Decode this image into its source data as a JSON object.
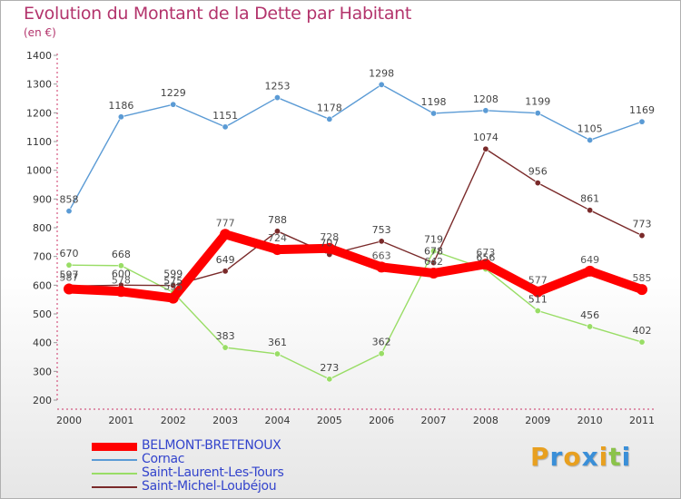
{
  "title": "Evolution du Montant de la Dette par Habitant",
  "subtitle": "(en €)",
  "logo": {
    "letters": [
      "P",
      "r",
      "o",
      "x",
      "i",
      "t",
      "i"
    ],
    "colors": [
      "#e8a020",
      "#3a8fd8",
      "#e8a020",
      "#3a8fd8",
      "#e8a020",
      "#8bc34a",
      "#3a8fd8"
    ]
  },
  "chart_data": {
    "type": "line",
    "categories": [
      "2000",
      "2001",
      "2002",
      "2003",
      "2004",
      "2005",
      "2006",
      "2007",
      "2008",
      "2009",
      "2010",
      "2011"
    ],
    "ylim": [
      200,
      1400
    ],
    "yticks": [
      200,
      300,
      400,
      500,
      600,
      700,
      800,
      900,
      1000,
      1100,
      1200,
      1300,
      1400
    ],
    "grid": false,
    "legend_position": "bottom-left",
    "series": [
      {
        "name": "BELMONT-BRETENOUX",
        "color": "#ff0000",
        "labelColor": "#5a5a5a",
        "thick": true,
        "values": [
          587,
          578,
          555,
          777,
          724,
          728,
          663,
          642,
          673,
          577,
          649,
          585
        ],
        "labels": [
          "587",
          "578",
          "555",
          "777",
          "724",
          "728",
          "663",
          "642",
          "673",
          "577",
          "649",
          "585"
        ]
      },
      {
        "name": "Cornac",
        "color": "#5b9bd5",
        "labelColor": "#444444",
        "values": [
          858,
          1186,
          1229,
          1151,
          1253,
          1178,
          1298,
          1198,
          1208,
          1199,
          1105,
          1169
        ],
        "labels": [
          "858",
          "1186",
          "1229",
          "1151",
          "1253",
          "1178",
          "1298",
          "1198",
          "1208",
          "1199",
          "1105",
          "1169"
        ]
      },
      {
        "name": "Saint-Laurent-Les-Tours",
        "color": "#99dd66",
        "labelColor": "#444444",
        "values": [
          670,
          668,
          575,
          383,
          361,
          273,
          362,
          719,
          656,
          511,
          456,
          402
        ],
        "labels": [
          "670",
          "668",
          "575",
          "383",
          "361",
          "273",
          "362",
          "719",
          "656",
          "511",
          "456",
          "402"
        ]
      },
      {
        "name": "Saint-Michel-Loubéjou",
        "color": "#7a2a2a",
        "labelColor": "#444444",
        "values": [
          597,
          600,
          599,
          649,
          788,
          707,
          753,
          678,
          1074,
          956,
          861,
          773
        ],
        "labels": [
          "597",
          "600",
          "599",
          "649",
          "788",
          "707",
          "753",
          "678",
          "1074",
          "956",
          "861",
          "773"
        ]
      }
    ]
  }
}
